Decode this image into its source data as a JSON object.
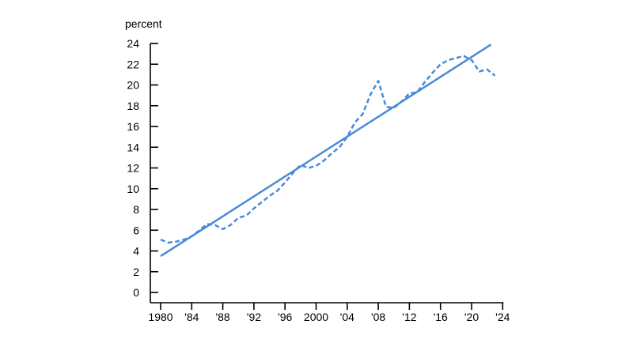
{
  "chart_data": {
    "type": "line",
    "title": "",
    "ylabel": "percent",
    "xlabel": "",
    "ylim": [
      0,
      24
    ],
    "xlim": [
      1980,
      2024
    ],
    "y_ticks": [
      0,
      2,
      4,
      6,
      8,
      10,
      12,
      14,
      16,
      18,
      20,
      22,
      24
    ],
    "x_ticks": [
      {
        "value": 1980,
        "label": "1980"
      },
      {
        "value": 1984,
        "label": "'84"
      },
      {
        "value": 1988,
        "label": "'88"
      },
      {
        "value": 1992,
        "label": "'92"
      },
      {
        "value": 1996,
        "label": "'96"
      },
      {
        "value": 2000,
        "label": "2000"
      },
      {
        "value": 2004,
        "label": "'04"
      },
      {
        "value": 2008,
        "label": "'08"
      },
      {
        "value": 2012,
        "label": "'12"
      },
      {
        "value": 2016,
        "label": "'16"
      },
      {
        "value": 2020,
        "label": "'20"
      },
      {
        "value": 2024,
        "label": "'24"
      }
    ],
    "grid": false,
    "legend": "none",
    "color": "#4a8ad8",
    "series": [
      {
        "style": "dashed",
        "x": [
          1980,
          1981,
          1982,
          1983,
          1984,
          1985,
          1986,
          1987,
          1988,
          1989,
          1990,
          1991,
          1992,
          1993,
          1994,
          1995,
          1996,
          1997,
          1998,
          1999,
          2000,
          2001,
          2002,
          2003,
          2004,
          2005,
          2006,
          2007,
          2008,
          2009,
          2010,
          2011,
          2012,
          2013,
          2014,
          2015,
          2016,
          2017,
          2018,
          2019,
          2020,
          2021,
          2022,
          2023
        ],
        "values": [
          5.1,
          4.8,
          4.9,
          5.1,
          5.4,
          6.0,
          6.6,
          6.5,
          6.1,
          6.5,
          7.2,
          7.4,
          8.1,
          8.7,
          9.3,
          9.8,
          10.6,
          11.5,
          12.3,
          12.0,
          12.2,
          12.7,
          13.4,
          14.0,
          15.0,
          16.4,
          17.2,
          19.1,
          20.4,
          17.9,
          17.8,
          18.4,
          19.2,
          19.3,
          20.3,
          21.2,
          22.0,
          22.4,
          22.6,
          22.8,
          22.4,
          21.3,
          21.5,
          20.9
        ]
      },
      {
        "style": "solid",
        "x": [
          1980,
          2022.5
        ],
        "values": [
          3.5,
          23.9
        ]
      }
    ]
  }
}
